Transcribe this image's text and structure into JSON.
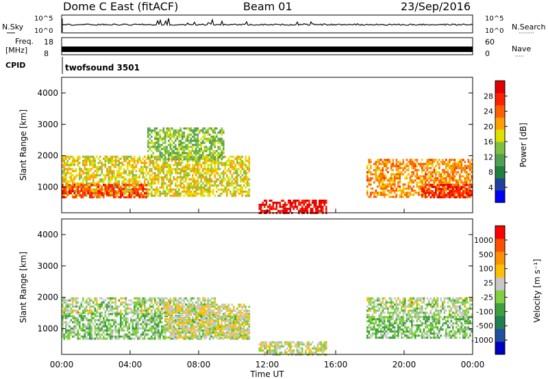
{
  "header": {
    "title": "Dome C East (fitACF)",
    "beam": "Beam 01",
    "date": "23/Sep/2016"
  },
  "strips": {
    "nsky_label": "N.Sky",
    "nsearch_label": "N.Search",
    "nsearch_dots": "·········",
    "count_top": "10^5",
    "count_bottom": "10^0",
    "freq_label_1": "Freq.",
    "freq_label_2": "[MHz]",
    "freq_top": "18",
    "freq_bottom": "8",
    "nave_label": "Nave",
    "nave_dots": "·····",
    "nave_top": "60",
    "nave_bottom": "0",
    "cpid_label": "CPID",
    "cpid_value": "twofsound 3501"
  },
  "axes": {
    "ylabel": "Slant Range [km]",
    "xlabel": "Time UT",
    "yticks": [
      "4000",
      "3000",
      "2000",
      "1000"
    ],
    "xticks": [
      "00:00",
      "04:00",
      "08:00",
      "12:00",
      "16:00",
      "20:00",
      "00:00"
    ]
  },
  "power_scale": {
    "label": "Power [dB]",
    "ticks": [
      "28",
      "24",
      "20",
      "16",
      "12",
      "8",
      "4"
    ],
    "colors": [
      "#0000ff",
      "#2040a0",
      "#208040",
      "#50a050",
      "#80c040",
      "#e0e000",
      "#ffa000",
      "#ff6000",
      "#ff2000",
      "#e00000"
    ]
  },
  "velocity_scale": {
    "label": "Velocity [m s⁻¹]",
    "ticks": [
      "1000",
      "500",
      "100",
      "25",
      "-25",
      "-100",
      "-500",
      "-1000"
    ],
    "colors": [
      "#0000c0",
      "#2050a0",
      "#208050",
      "#40a040",
      "#80d040",
      "#c8c8c8",
      "#ffc000",
      "#ff9000",
      "#ff5000",
      "#ff0000"
    ]
  },
  "chart_data": [
    {
      "type": "heatmap",
      "panel": "power",
      "xlabel": "Time UT",
      "ylabel": "Slant Range [km]",
      "xlim_hours": [
        0,
        24
      ],
      "ylim_km": [
        180,
        4500
      ],
      "colorbar_label": "Power [dB]",
      "colorbar_range": [
        0,
        32
      ],
      "echo_regions": [
        {
          "t0": 0.0,
          "t1": 11.0,
          "r_lo": 700,
          "r_hi": 2000,
          "value": 18
        },
        {
          "t0": 0.0,
          "t1": 5.0,
          "r_lo": 700,
          "r_hi": 1100,
          "value": 26
        },
        {
          "t0": 5.0,
          "t1": 9.5,
          "r_lo": 1900,
          "r_hi": 2900,
          "value": 14
        },
        {
          "t0": 11.5,
          "t1": 15.5,
          "r_lo": 200,
          "r_hi": 600,
          "value": 30
        },
        {
          "t0": 17.8,
          "t1": 24.0,
          "r_lo": 700,
          "r_hi": 1900,
          "value": 22
        },
        {
          "t0": 21.0,
          "t1": 24.0,
          "r_lo": 700,
          "r_hi": 1100,
          "value": 28
        }
      ]
    },
    {
      "type": "heatmap",
      "panel": "velocity",
      "xlabel": "Time UT",
      "ylabel": "Slant Range [km]",
      "xlim_hours": [
        0,
        24
      ],
      "ylim_km": [
        180,
        4500
      ],
      "colorbar_label": "Velocity [m s⁻¹]",
      "colorbar_range": [
        -1000,
        1000
      ],
      "echo_regions": [
        {
          "t0": 0.0,
          "t1": 9.0,
          "r_lo": 1500,
          "r_hi": 2000,
          "value": 0
        },
        {
          "t0": 0.0,
          "t1": 11.0,
          "r_lo": 700,
          "r_hi": 1500,
          "value": -100
        },
        {
          "t0": 6.0,
          "t1": 11.0,
          "r_lo": 700,
          "r_hi": 1800,
          "value": 150
        },
        {
          "t0": 11.5,
          "t1": 15.5,
          "r_lo": 200,
          "r_hi": 600,
          "value": 80
        },
        {
          "t0": 17.8,
          "t1": 24.0,
          "r_lo": 1400,
          "r_hi": 2000,
          "value": 0
        },
        {
          "t0": 17.8,
          "t1": 24.0,
          "r_lo": 700,
          "r_hi": 1400,
          "value": -150
        }
      ]
    }
  ]
}
